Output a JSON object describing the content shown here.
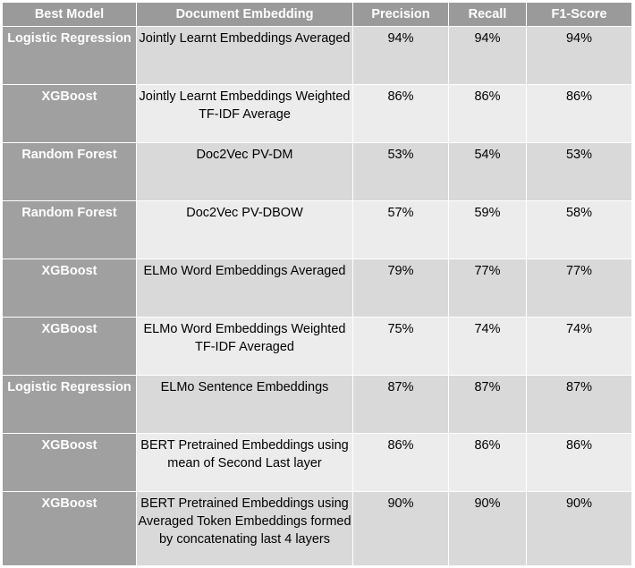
{
  "header": {
    "model": "Best Model",
    "embedding": "Document Embedding",
    "precision": "Precision",
    "recall": "Recall",
    "f1": "F1-Score"
  },
  "rows": [
    {
      "model": "Logistic Regression",
      "embedding": "Jointly Learnt Embeddings Averaged",
      "precision": "94%",
      "recall": "94%",
      "f1": "94%"
    },
    {
      "model": "XGBoost",
      "embedding": "Jointly Learnt Embeddings Weighted TF-IDF Average",
      "precision": "86%",
      "recall": "86%",
      "f1": "86%"
    },
    {
      "model": "Random Forest",
      "embedding": "Doc2Vec PV-DM",
      "precision": "53%",
      "recall": "54%",
      "f1": "53%"
    },
    {
      "model": "Random Forest",
      "embedding": "Doc2Vec PV-DBOW",
      "precision": "57%",
      "recall": "59%",
      "f1": "58%"
    },
    {
      "model": "XGBoost",
      "embedding": "ELMo Word Embeddings Averaged",
      "precision": "79%",
      "recall": "77%",
      "f1": "77%"
    },
    {
      "model": "XGBoost",
      "embedding": "ELMo Word Embeddings Weighted TF-IDF Averaged",
      "precision": "75%",
      "recall": "74%",
      "f1": "74%"
    },
    {
      "model": "Logistic Regression",
      "embedding": "ELMo Sentence Embeddings",
      "precision": "87%",
      "recall": "87%",
      "f1": "87%"
    },
    {
      "model": "XGBoost",
      "embedding": "BERT Pretrained Embeddings using mean of Second Last layer",
      "precision": "86%",
      "recall": "86%",
      "f1": "86%"
    },
    {
      "model": "XGBoost",
      "embedding": "BERT Pretrained Embeddings using Averaged Token Embeddings formed by concatenating last 4 layers",
      "precision": "90%",
      "recall": "90%",
      "f1": "90%"
    }
  ]
}
